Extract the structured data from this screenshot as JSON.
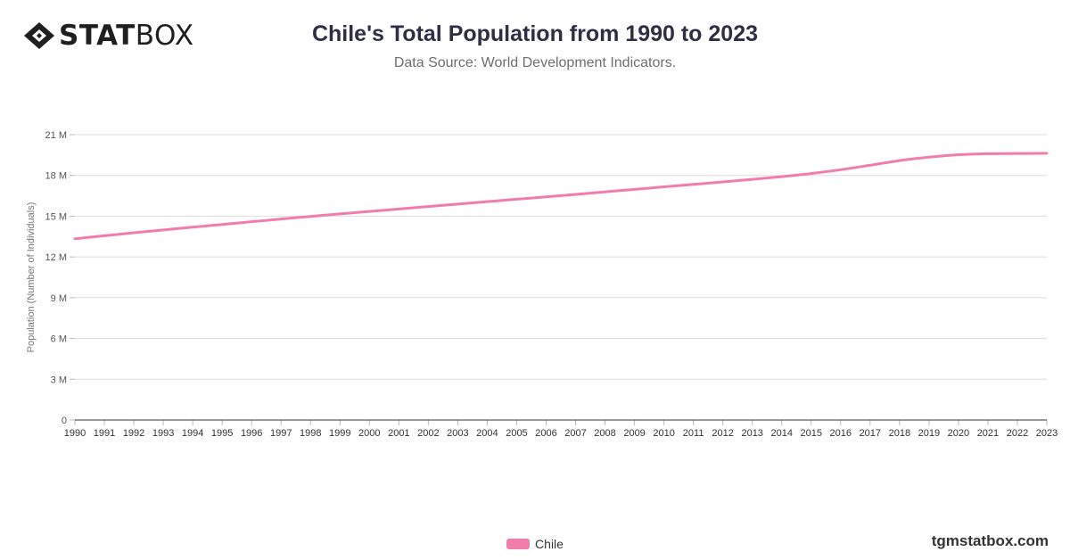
{
  "brand": {
    "logo_bold": "STAT",
    "logo_light": "BOX",
    "watermark": "tgmstatbox.com"
  },
  "chart_data": {
    "type": "line",
    "title": "Chile's Total Population from 1990 to 2023",
    "subtitle": "Data Source: World Development Indicators.",
    "xlabel": "",
    "ylabel": "Population (Number of Individuals)",
    "ylim": [
      0,
      21000000
    ],
    "yticks": [
      0,
      3000000,
      6000000,
      9000000,
      12000000,
      15000000,
      18000000,
      21000000
    ],
    "ytick_labels": [
      "0",
      "3 M",
      "6 M",
      "9 M",
      "12 M",
      "15 M",
      "18 M",
      "21 M"
    ],
    "grid": true,
    "legend_position": "bottom-center",
    "color": "#f07dab",
    "categories": [
      "1990",
      "1991",
      "1992",
      "1993",
      "1994",
      "1995",
      "1996",
      "1997",
      "1998",
      "1999",
      "2000",
      "2001",
      "2002",
      "2003",
      "2004",
      "2005",
      "2006",
      "2007",
      "2008",
      "2009",
      "2010",
      "2011",
      "2012",
      "2013",
      "2014",
      "2015",
      "2016",
      "2017",
      "2018",
      "2019",
      "2020",
      "2021",
      "2022",
      "2023"
    ],
    "series": [
      {
        "name": "Chile",
        "values": [
          13340000,
          13560000,
          13780000,
          13990000,
          14190000,
          14390000,
          14590000,
          14790000,
          14980000,
          15170000,
          15350000,
          15530000,
          15710000,
          15890000,
          16070000,
          16250000,
          16420000,
          16600000,
          16790000,
          16970000,
          17160000,
          17340000,
          17520000,
          17710000,
          17910000,
          18140000,
          18420000,
          18750000,
          19090000,
          19340000,
          19520000,
          19600000,
          19610000,
          19630000
        ]
      }
    ]
  }
}
